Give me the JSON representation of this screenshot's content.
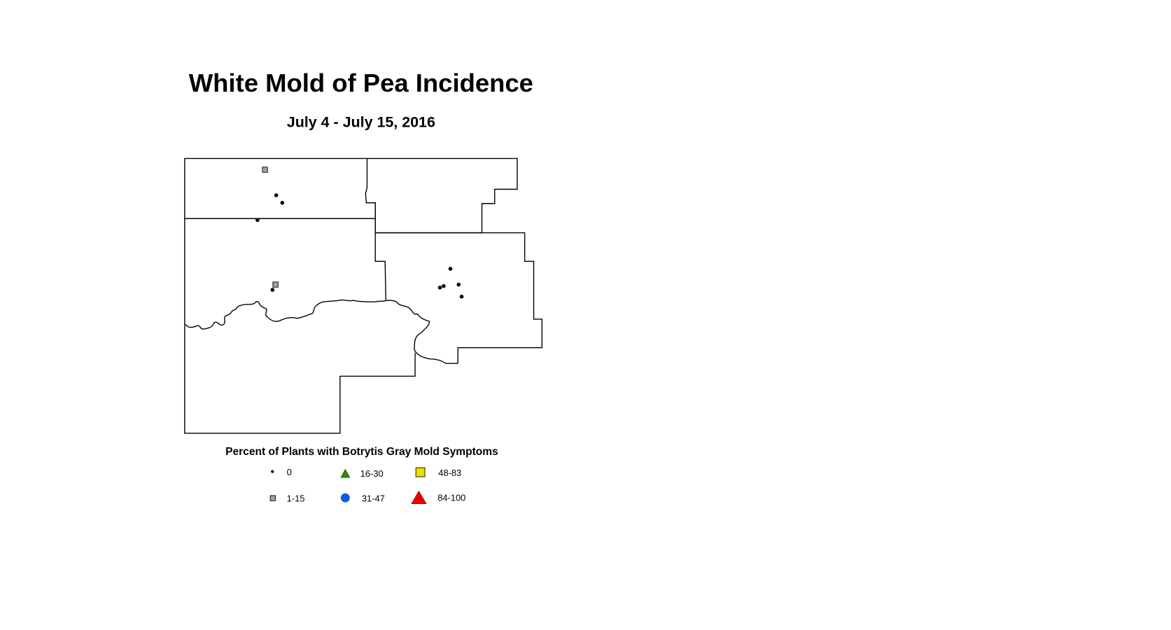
{
  "title": "White Mold of Pea Incidence",
  "subtitle": "July 4 - July 15, 2016",
  "legend": {
    "title": "Percent of Plants with Botrytis Gray Mold Symptoms",
    "classes": [
      {
        "label": "0",
        "symbol": "dot",
        "color": "#000000"
      },
      {
        "label": "1-15",
        "symbol": "square",
        "color": "#a0a0a0"
      },
      {
        "label": "16-30",
        "symbol": "triangle",
        "color": "#2e8b00"
      },
      {
        "label": "31-47",
        "symbol": "circle",
        "color": "#0a5be0"
      },
      {
        "label": "48-83",
        "symbol": "square",
        "color": "#e8e000"
      },
      {
        "label": "84-100",
        "symbol": "triangle",
        "color": "#ee0000"
      }
    ]
  },
  "observations": {
    "class_0_sites": 9,
    "class_1_15_sites": 2
  }
}
